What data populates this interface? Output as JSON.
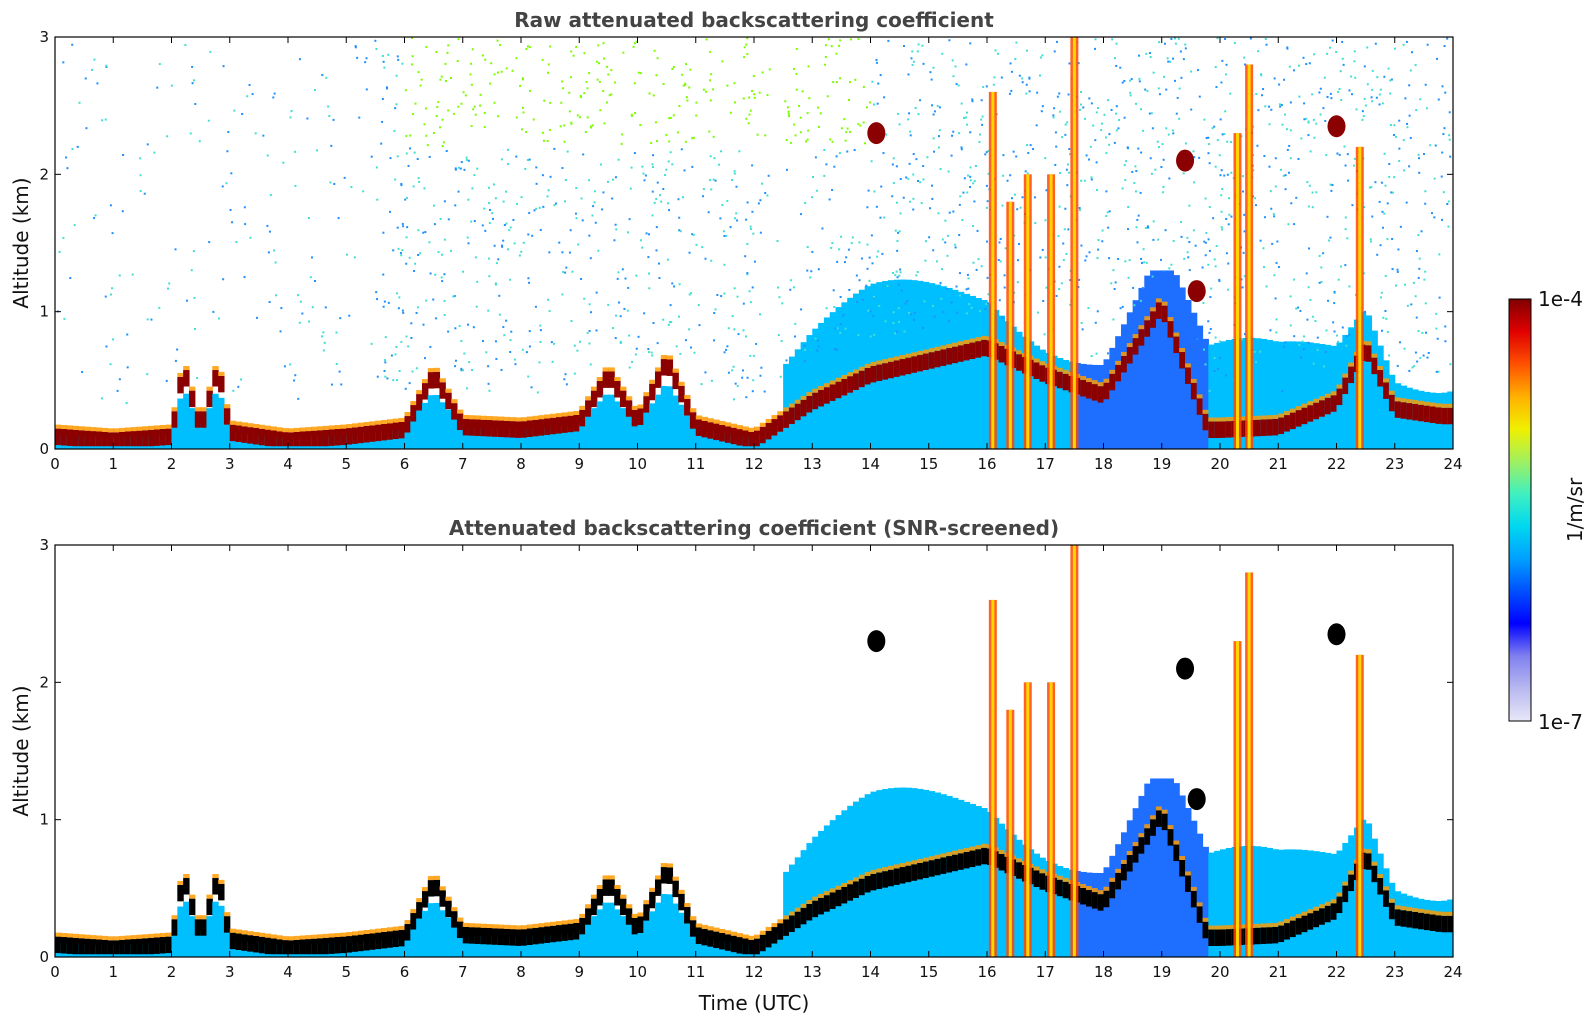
{
  "chart_data": [
    {
      "type": "heatmap",
      "title": "Raw attenuated backscattering coefficient",
      "xlabel": "",
      "ylabel": "Altitude (km)",
      "xlim": [
        0,
        24
      ],
      "ylim": [
        0,
        3
      ],
      "x_ticks": [
        0,
        1,
        2,
        3,
        4,
        5,
        6,
        7,
        8,
        9,
        10,
        11,
        12,
        13,
        14,
        15,
        16,
        17,
        18,
        19,
        20,
        21,
        22,
        23,
        24
      ],
      "y_ticks": [
        0,
        1,
        2,
        3
      ],
      "layer_top_km": {
        "x": [
          0,
          1,
          2,
          2.2,
          2.5,
          2.8,
          3,
          4,
          5,
          6,
          6.5,
          7,
          8,
          9,
          9.5,
          10,
          10.5,
          11,
          12,
          13,
          14,
          15,
          16,
          17,
          18,
          19,
          19.8,
          20,
          21,
          22,
          22.5,
          23,
          23.8
        ],
        "y": [
          0.15,
          0.12,
          0.15,
          0.65,
          0.2,
          0.65,
          0.18,
          0.12,
          0.15,
          0.2,
          0.6,
          0.22,
          0.2,
          0.25,
          0.6,
          0.25,
          0.7,
          0.22,
          0.12,
          0.4,
          0.6,
          0.7,
          0.8,
          0.6,
          0.45,
          1.1,
          0.2,
          0.2,
          0.22,
          0.4,
          0.8,
          0.35,
          0.3
        ]
      }
    },
    {
      "type": "heatmap",
      "title": "Attenuated backscattering coefficient (SNR-screened)",
      "xlabel": "Time (UTC)",
      "ylabel": "Altitude (km)",
      "xlim": [
        0,
        24
      ],
      "ylim": [
        0,
        3
      ],
      "x_ticks": [
        0,
        1,
        2,
        3,
        4,
        5,
        6,
        7,
        8,
        9,
        10,
        11,
        12,
        13,
        14,
        15,
        16,
        17,
        18,
        19,
        20,
        21,
        22,
        23,
        24
      ],
      "y_ticks": [
        0,
        1,
        2,
        3
      ],
      "layer_top_km": {
        "x": [
          0,
          1,
          2,
          2.2,
          2.5,
          2.8,
          3,
          4,
          5,
          6,
          6.5,
          7,
          8,
          9,
          9.5,
          10,
          10.5,
          11,
          12,
          13,
          14,
          15,
          16,
          17,
          18,
          19,
          19.8,
          20,
          21,
          22,
          22.5,
          23,
          23.8
        ],
        "y": [
          0.15,
          0.12,
          0.15,
          0.65,
          0.2,
          0.65,
          0.18,
          0.12,
          0.15,
          0.2,
          0.6,
          0.22,
          0.2,
          0.25,
          0.6,
          0.25,
          0.7,
          0.22,
          0.12,
          0.4,
          0.6,
          0.7,
          0.8,
          0.6,
          0.45,
          1.1,
          0.2,
          0.2,
          0.22,
          0.4,
          0.8,
          0.35,
          0.3
        ]
      }
    }
  ],
  "colorbar": {
    "label": "1/m/sr",
    "min_label": "1e-7",
    "max_label": "1e-4",
    "colors": [
      "#e8e8f8",
      "#b8b8f0",
      "#8080f0",
      "#0000ff",
      "#0050ff",
      "#00a0ff",
      "#00d8f0",
      "#40f0c0",
      "#a0f060",
      "#f0f000",
      "#ffb000",
      "#ff5000",
      "#e00000",
      "#800000"
    ]
  },
  "colors": {
    "boundary_layer": "#8b0000",
    "aerosol": "#1e90ff",
    "clear_air": "#00bfff",
    "noise_high": "#7cfc00"
  }
}
